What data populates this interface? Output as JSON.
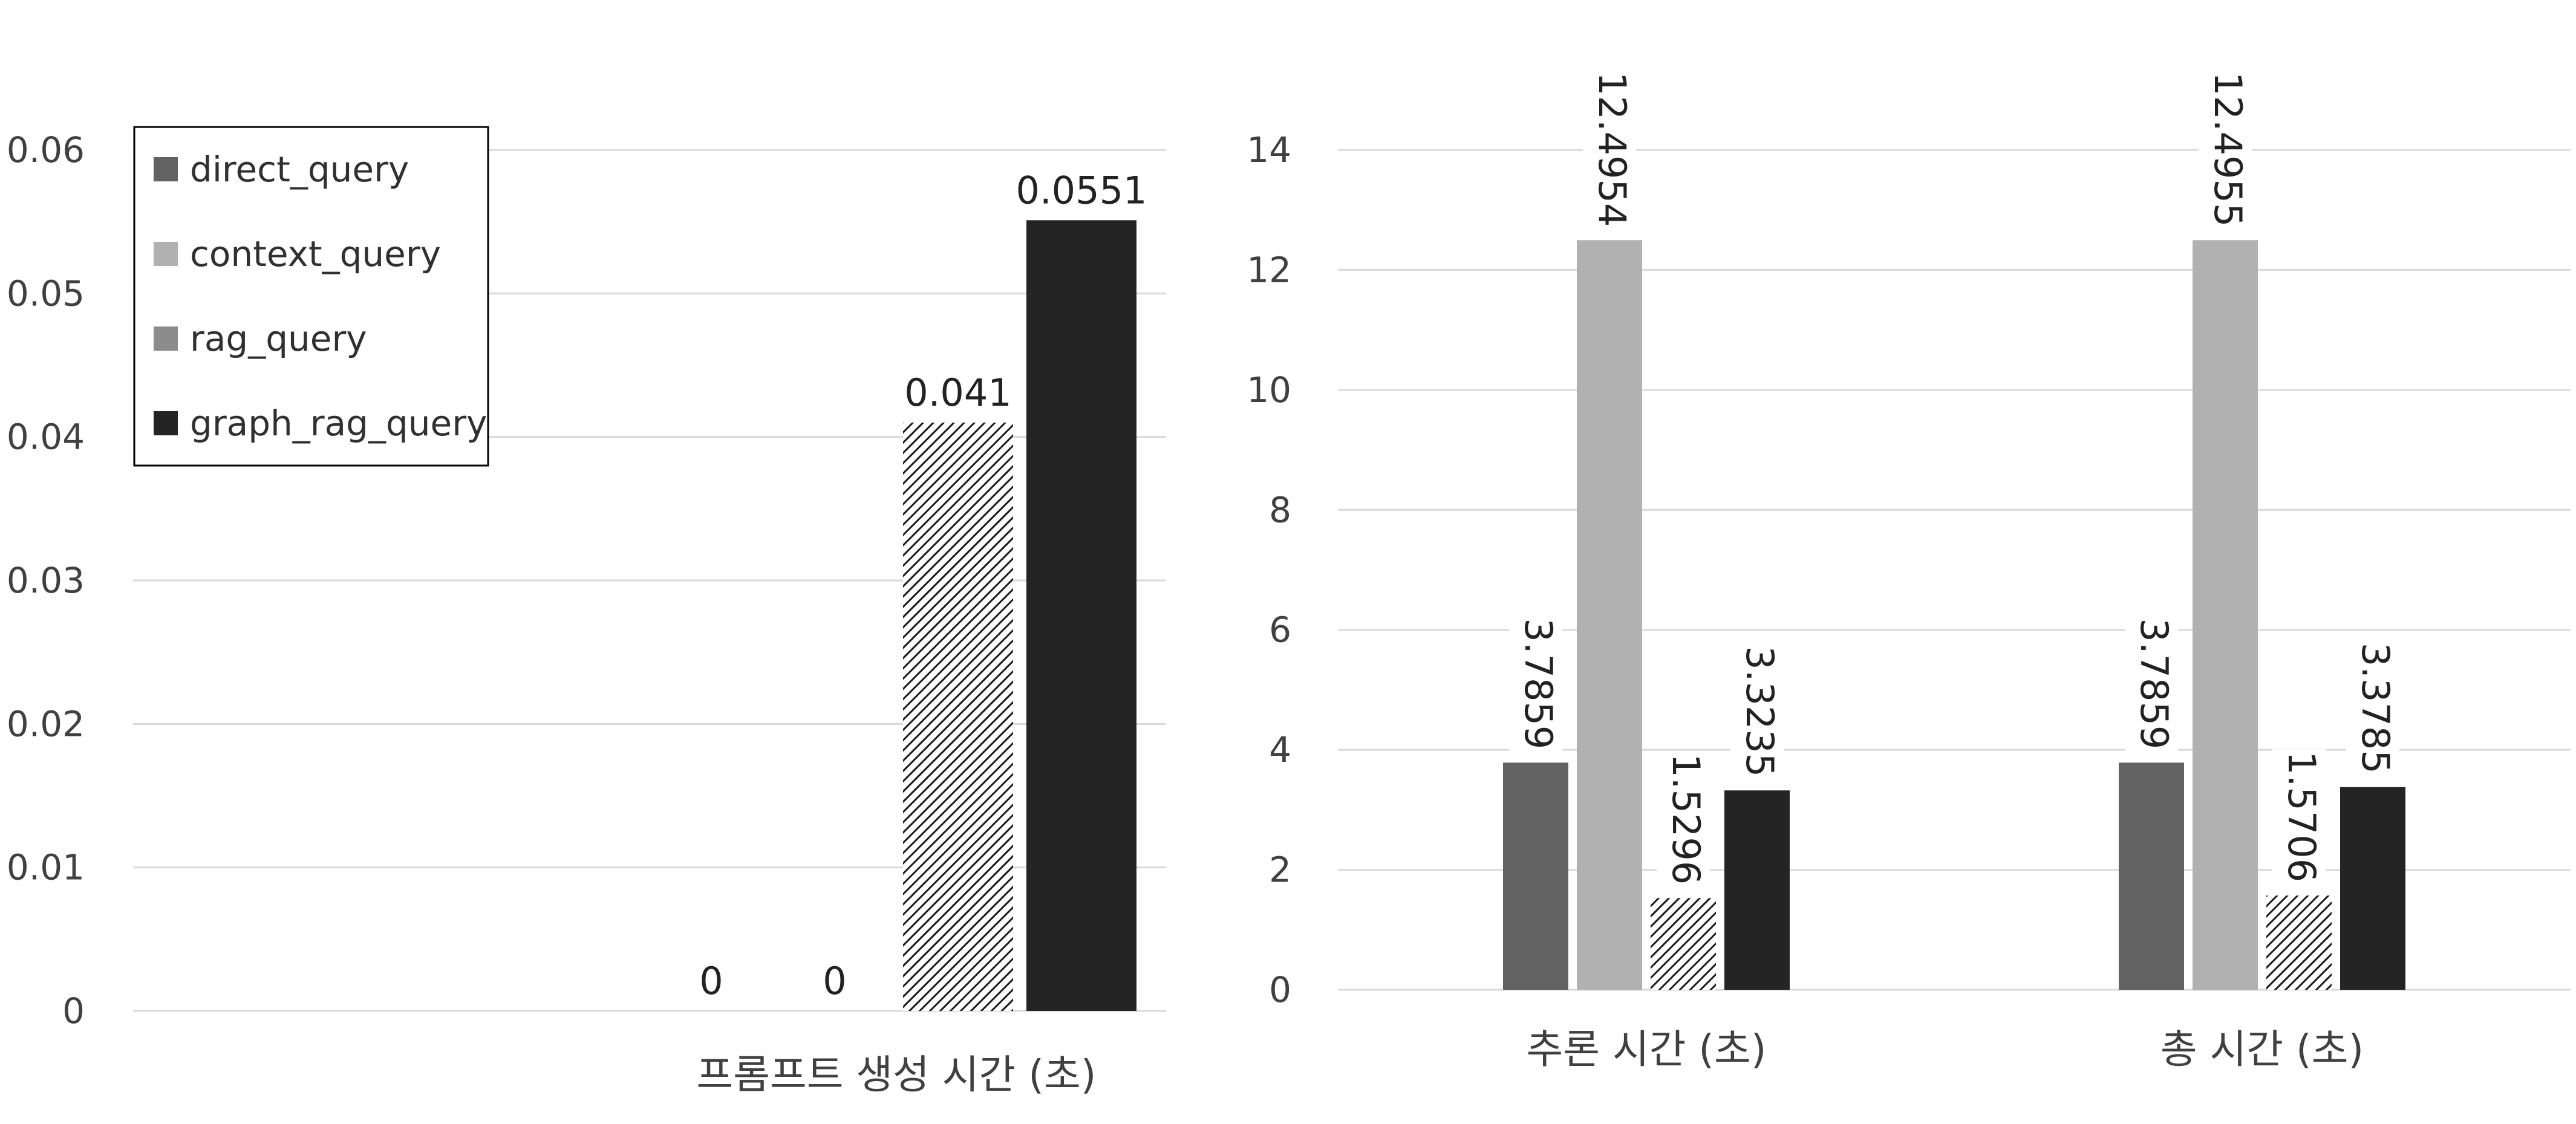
{
  "colors": {
    "direct_query": "#626262",
    "context_query": "#b1b1b1",
    "rag_query": "#8c8c8c",
    "graph_rag_query": "#242424",
    "gridline": "#d9d9d9",
    "legend_border": "#000000",
    "background": "#ffffff"
  },
  "chart_data": [
    {
      "type": "bar",
      "title": "",
      "xlabel": "",
      "ylabel": "",
      "categories": [
        "프롬프트 생성 시간 (초)"
      ],
      "series": [
        {
          "name": "direct_query",
          "values": [
            0
          ],
          "label_text": [
            "0"
          ],
          "pattern": "solid"
        },
        {
          "name": "context_query",
          "values": [
            0
          ],
          "label_text": [
            "0"
          ],
          "pattern": "solid"
        },
        {
          "name": "rag_query",
          "values": [
            0.041
          ],
          "label_text": [
            "0.041"
          ],
          "pattern": "diagonal-hatch"
        },
        {
          "name": "graph_rag_query",
          "values": [
            0.0551
          ],
          "label_text": [
            "0.0551"
          ],
          "pattern": "solid"
        }
      ],
      "ylim": [
        0,
        0.06
      ],
      "yticks": [
        "0",
        "0.01",
        "0.02",
        "0.03",
        "0.04",
        "0.05",
        "0.06"
      ],
      "grid": true,
      "legend": "top-left",
      "data_label_orientation": "horizontal"
    },
    {
      "type": "bar",
      "title": "",
      "xlabel": "",
      "ylabel": "",
      "categories": [
        "추론 시간 (초)",
        "총 시간 (초)"
      ],
      "series": [
        {
          "name": "direct_query",
          "values": [
            3.7859,
            3.7859
          ],
          "label_text": [
            "3.7859",
            "3.7859"
          ],
          "pattern": "solid"
        },
        {
          "name": "context_query",
          "values": [
            12.4954,
            12.4955
          ],
          "label_text": [
            "12.4954",
            "12.4955"
          ],
          "pattern": "solid"
        },
        {
          "name": "rag_query",
          "values": [
            1.5296,
            1.5706
          ],
          "label_text": [
            "1.5296",
            "1.5706"
          ],
          "pattern": "diagonal-hatch"
        },
        {
          "name": "graph_rag_query",
          "values": [
            3.3235,
            3.3785
          ],
          "label_text": [
            "3.3235",
            "3.3785"
          ],
          "pattern": "solid"
        }
      ],
      "ylim": [
        0,
        14
      ],
      "yticks": [
        "0",
        "2",
        "4",
        "6",
        "8",
        "10",
        "12",
        "14"
      ],
      "grid": true,
      "legend": "none",
      "data_label_orientation": "rotated-vertical"
    }
  ]
}
